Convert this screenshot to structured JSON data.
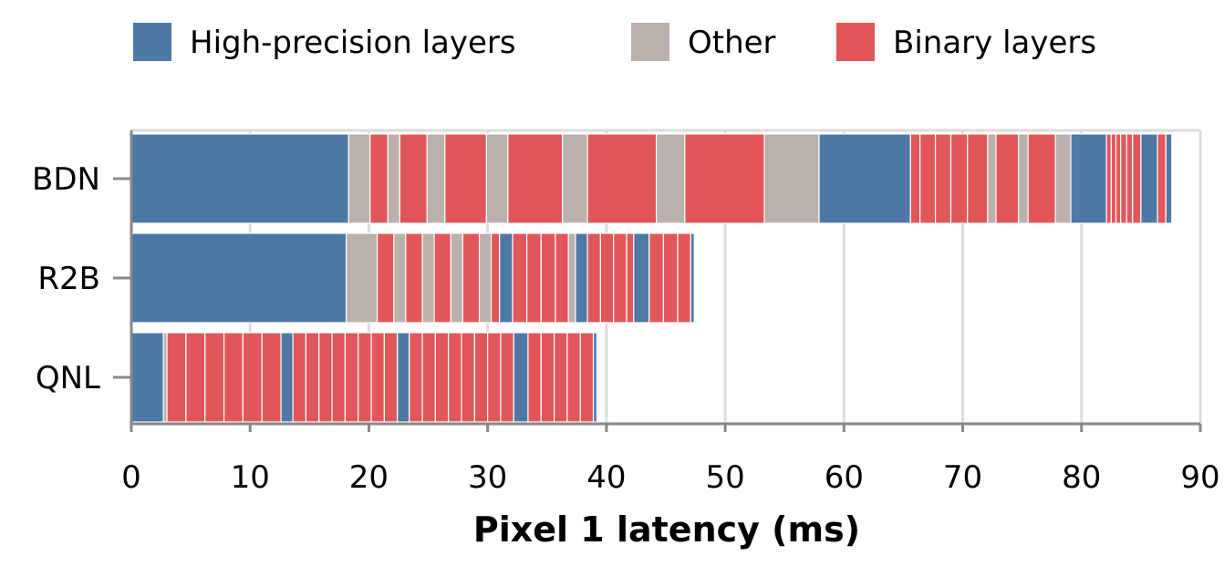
{
  "chart_data": {
    "type": "bar",
    "orientation": "horizontal",
    "stacked": true,
    "xlabel": "Pixel 1 latency (ms)",
    "ylabel": "",
    "xlim": [
      0,
      90
    ],
    "x_ticks": [
      0,
      10,
      20,
      30,
      40,
      50,
      60,
      70,
      80,
      90
    ],
    "grid": "vertical",
    "legend_position": "top",
    "legend": [
      {
        "key": "hp",
        "label": "High-precision layers",
        "color": "#4e79a7"
      },
      {
        "key": "other",
        "label": "Other",
        "color": "#bab0ac"
      },
      {
        "key": "bin",
        "label": "Binary layers",
        "color": "#e15759"
      }
    ],
    "categories": [
      "BDN",
      "R2B",
      "QNL"
    ],
    "bars": [
      {
        "name": "BDN",
        "segments": [
          [
            "hp",
            18.3
          ],
          [
            "other",
            1.8
          ],
          [
            "bin",
            1.5
          ],
          [
            "other",
            1.0
          ],
          [
            "bin",
            2.3
          ],
          [
            "other",
            1.5
          ],
          [
            "bin",
            3.5
          ],
          [
            "other",
            1.8
          ],
          [
            "bin",
            4.6
          ],
          [
            "other",
            2.1
          ],
          [
            "bin",
            5.8
          ],
          [
            "other",
            2.4
          ],
          [
            "bin",
            6.7
          ],
          [
            "other",
            4.6
          ],
          [
            "hp",
            7.7
          ],
          [
            "bin",
            0.8
          ],
          [
            "bin",
            1.3
          ],
          [
            "bin",
            1.3
          ],
          [
            "bin",
            1.4
          ],
          [
            "bin",
            1.7
          ],
          [
            "other",
            0.7
          ],
          [
            "bin",
            1.9
          ],
          [
            "other",
            0.8
          ],
          [
            "bin",
            2.3
          ],
          [
            "other",
            1.3
          ],
          [
            "hp",
            3.0
          ],
          [
            "bin",
            0.4
          ],
          [
            "bin",
            0.4
          ],
          [
            "bin",
            0.4
          ],
          [
            "bin",
            0.5
          ],
          [
            "bin",
            0.5
          ],
          [
            "bin",
            0.7
          ],
          [
            "hp",
            1.4
          ],
          [
            "bin",
            0.7
          ],
          [
            "hp",
            0.5
          ]
        ]
      },
      {
        "name": "R2B",
        "segments": [
          [
            "hp",
            18.1
          ],
          [
            "other",
            2.6
          ],
          [
            "bin",
            1.4
          ],
          [
            "other",
            1.0
          ],
          [
            "bin",
            1.4
          ],
          [
            "other",
            1.0
          ],
          [
            "bin",
            1.4
          ],
          [
            "other",
            1.0
          ],
          [
            "bin",
            1.4
          ],
          [
            "other",
            1.0
          ],
          [
            "bin",
            0.7
          ],
          [
            "hp",
            1.1
          ],
          [
            "bin",
            1.2
          ],
          [
            "bin",
            1.2
          ],
          [
            "bin",
            1.2
          ],
          [
            "bin",
            1.1
          ],
          [
            "other",
            0.6
          ],
          [
            "hp",
            1.0
          ],
          [
            "bin",
            1.1
          ],
          [
            "bin",
            1.1
          ],
          [
            "bin",
            1.1
          ],
          [
            "bin",
            0.6
          ],
          [
            "hp",
            1.3
          ],
          [
            "bin",
            1.2
          ],
          [
            "bin",
            1.2
          ],
          [
            "bin",
            1.1
          ],
          [
            "hp",
            0.3
          ]
        ]
      },
      {
        "name": "QNL",
        "segments": [
          [
            "hp",
            2.7
          ],
          [
            "other",
            0.3
          ],
          [
            "bin",
            1.6
          ],
          [
            "bin",
            1.6
          ],
          [
            "bin",
            1.6
          ],
          [
            "bin",
            1.6
          ],
          [
            "bin",
            1.6
          ],
          [
            "bin",
            1.6
          ],
          [
            "hp",
            1.0
          ],
          [
            "bin",
            1.1
          ],
          [
            "bin",
            1.1
          ],
          [
            "bin",
            1.1
          ],
          [
            "bin",
            1.1
          ],
          [
            "bin",
            1.1
          ],
          [
            "bin",
            1.1
          ],
          [
            "bin",
            1.1
          ],
          [
            "bin",
            1.1
          ],
          [
            "hp",
            1.0
          ],
          [
            "bin",
            1.1
          ],
          [
            "bin",
            1.1
          ],
          [
            "bin",
            1.1
          ],
          [
            "bin",
            1.1
          ],
          [
            "bin",
            1.1
          ],
          [
            "bin",
            1.1
          ],
          [
            "bin",
            1.1
          ],
          [
            "bin",
            1.1
          ],
          [
            "hp",
            1.2
          ],
          [
            "bin",
            1.1
          ],
          [
            "bin",
            1.1
          ],
          [
            "bin",
            1.1
          ],
          [
            "bin",
            1.1
          ],
          [
            "bin",
            1.1
          ],
          [
            "hp",
            0.3
          ]
        ]
      }
    ]
  }
}
